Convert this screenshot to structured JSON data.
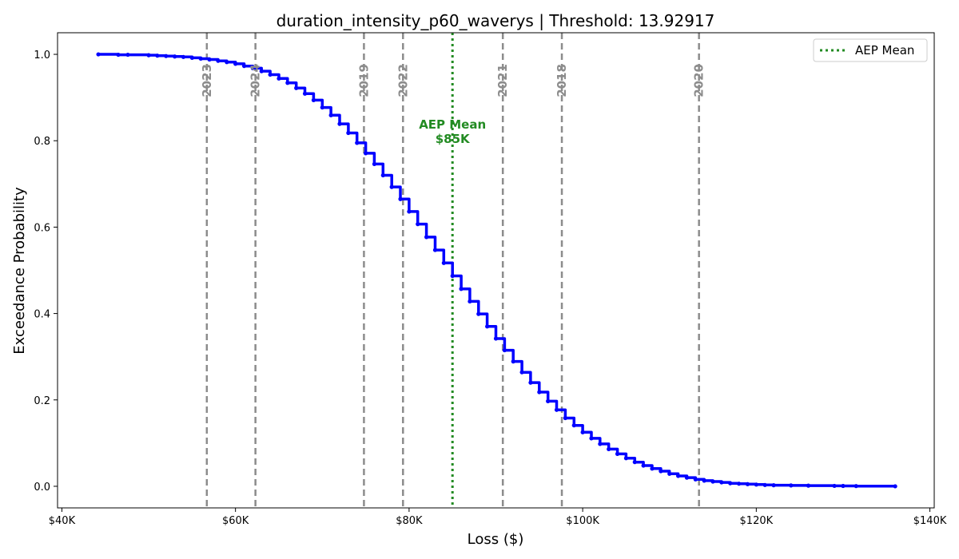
{
  "chart_data": {
    "type": "line",
    "title": "duration_intensity_p60_waverys | Threshold: 13.92917",
    "xlabel": "Loss ($)",
    "ylabel": "Exceedance Probability",
    "xlim": [
      39500,
      140500
    ],
    "ylim": [
      -0.05,
      1.05
    ],
    "x_ticks": [
      40000,
      60000,
      80000,
      100000,
      120000,
      140000
    ],
    "x_tick_labels": [
      "$40K",
      "$60K",
      "$80K",
      "$100K",
      "$120K",
      "$140K"
    ],
    "y_ticks": [
      0.0,
      0.2,
      0.4,
      0.6,
      0.8,
      1.0
    ],
    "y_tick_labels": [
      "0.0",
      "0.2",
      "0.4",
      "0.6",
      "0.8",
      "1.0"
    ],
    "grid": false,
    "series": [
      {
        "color": "#0000ff",
        "x": [
          44200,
          46500,
          47600,
          50000,
          51000,
          52000,
          53000,
          54000,
          55000,
          56000,
          57000,
          58000,
          59000,
          60000,
          61000,
          62000,
          63000,
          64000,
          65000,
          66000,
          67000,
          68000,
          69000,
          70000,
          71000,
          72000,
          73000,
          74000,
          75000,
          76000,
          77000,
          78000,
          79000,
          80000,
          81000,
          82000,
          83000,
          84000,
          85000,
          86000,
          87000,
          88000,
          89000,
          90000,
          91000,
          92000,
          93000,
          94000,
          95000,
          96000,
          97000,
          98000,
          99000,
          100000,
          101000,
          102000,
          103000,
          104000,
          105000,
          106000,
          107000,
          108000,
          109000,
          110000,
          111000,
          112000,
          113000,
          114000,
          115000,
          116000,
          117000,
          118000,
          119000,
          120000,
          121000,
          122000,
          124000,
          126000,
          129000,
          130000,
          131500,
          136000
        ],
        "y": [
          1.0,
          0.999,
          0.999,
          0.998,
          0.997,
          0.996,
          0.995,
          0.994,
          0.992,
          0.99,
          0.988,
          0.985,
          0.982,
          0.978,
          0.973,
          0.968,
          0.961,
          0.953,
          0.944,
          0.934,
          0.922,
          0.909,
          0.894,
          0.877,
          0.859,
          0.839,
          0.818,
          0.795,
          0.771,
          0.746,
          0.72,
          0.693,
          0.665,
          0.636,
          0.607,
          0.577,
          0.547,
          0.517,
          0.487,
          0.457,
          0.428,
          0.399,
          0.37,
          0.342,
          0.315,
          0.289,
          0.264,
          0.24,
          0.218,
          0.197,
          0.177,
          0.158,
          0.141,
          0.125,
          0.111,
          0.098,
          0.086,
          0.075,
          0.065,
          0.056,
          0.048,
          0.041,
          0.035,
          0.029,
          0.024,
          0.02,
          0.016,
          0.013,
          0.011,
          0.009,
          0.007,
          0.006,
          0.005,
          0.004,
          0.003,
          0.0025,
          0.002,
          0.0015,
          0.001,
          0.0008,
          0.0005,
          0.0
        ]
      }
    ],
    "vlines": [
      {
        "label": "2023",
        "x": 56700
      },
      {
        "label": "2024",
        "x": 62300
      },
      {
        "label": "2019",
        "x": 74800
      },
      {
        "label": "2022",
        "x": 79300
      },
      {
        "label": "2021",
        "x": 90800
      },
      {
        "label": "2018",
        "x": 97600
      },
      {
        "label": "2020",
        "x": 113400
      }
    ],
    "mean_line": {
      "x": 85000,
      "color": "#228b22",
      "label_line1": "AEP Mean",
      "label_line2": "$85K"
    },
    "legend": {
      "position": "top-right",
      "entries": [
        "AEP Mean"
      ]
    }
  }
}
